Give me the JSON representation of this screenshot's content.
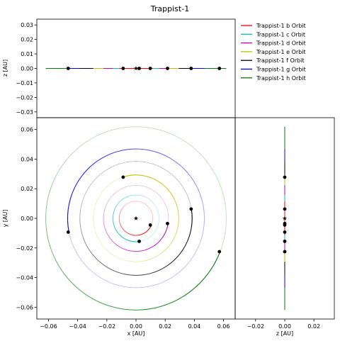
{
  "title": "Trappist-1",
  "legend": {
    "placement": "upper-right-panel",
    "entries": [
      {
        "label": "Trappist-1 b Orbit",
        "color": "#ff0000"
      },
      {
        "label": "Trappist-1 c Orbit",
        "color": "#00bfbf"
      },
      {
        "label": "Trappist-1 d Orbit",
        "color": "#bf00bf"
      },
      {
        "label": "Trappist-1 e Orbit",
        "color": "#bfbf00"
      },
      {
        "label": "Trappist-1 f Orbit",
        "color": "#000000"
      },
      {
        "label": "Trappist-1 g Orbit",
        "color": "#0000ff"
      },
      {
        "label": "Trappist-1 h Orbit",
        "color": "#008000"
      }
    ]
  },
  "chart_data": [
    {
      "type": "line",
      "panel": "xz",
      "xlabel": "",
      "ylabel": "z [AU]",
      "xlim": [
        -0.068,
        0.068
      ],
      "ylim": [
        -0.034,
        0.034
      ],
      "xticks": [],
      "yticks": [
        -0.03,
        -0.02,
        -0.01,
        0.0,
        0.01,
        0.02,
        0.03
      ],
      "ytick_labels": [
        "−0.03",
        "−0.02",
        "−0.01",
        "0.00",
        "0.01",
        "0.02",
        "0.03"
      ],
      "star": {
        "x": 0.0,
        "z": 0.0
      },
      "planets": [
        {
          "x": 0.0098,
          "z": 0.0
        },
        {
          "x": 0.0022,
          "z": 0.0
        },
        {
          "x": 0.0216,
          "z": 0.0
        },
        {
          "x": -0.0088,
          "z": 0.0
        },
        {
          "x": 0.0378,
          "z": 0.0
        },
        {
          "x": -0.0465,
          "z": 0.0
        },
        {
          "x": 0.0572,
          "z": 0.0
        }
      ]
    },
    {
      "type": "line",
      "panel": "xy",
      "xlabel": "x [AU]",
      "ylabel": "y [AU]",
      "xlim": [
        -0.068,
        0.068
      ],
      "ylim": [
        -0.068,
        0.068
      ],
      "xticks": [
        -0.06,
        -0.04,
        -0.02,
        0.0,
        0.02,
        0.04,
        0.06
      ],
      "xtick_labels": [
        "−0.06",
        "−0.04",
        "−0.02",
        "0.00",
        "0.02",
        "0.04",
        "0.06"
      ],
      "yticks": [
        -0.06,
        -0.04,
        -0.02,
        0.0,
        0.02,
        0.04,
        0.06
      ],
      "ytick_labels": [
        "−0.06",
        "−0.04",
        "−0.02",
        "0.00",
        "0.02",
        "0.04",
        "0.06"
      ],
      "star": {
        "x": 0.0,
        "y": 0.0
      },
      "series": [
        {
          "name": "Trappist-1 b Orbit",
          "radius": 0.0115,
          "planet": {
            "x": 0.0098,
            "y": -0.0045
          }
        },
        {
          "name": "Trappist-1 c Orbit",
          "radius": 0.0158,
          "planet": {
            "x": 0.0022,
            "y": -0.0155
          }
        },
        {
          "name": "Trappist-1 d Orbit",
          "radius": 0.0223,
          "planet": {
            "x": 0.0216,
            "y": -0.0035
          }
        },
        {
          "name": "Trappist-1 e Orbit",
          "radius": 0.0293,
          "planet": {
            "x": -0.0088,
            "y": 0.0278
          }
        },
        {
          "name": "Trappist-1 f Orbit",
          "radius": 0.0385,
          "planet": {
            "x": 0.0378,
            "y": 0.0063
          }
        },
        {
          "name": "Trappist-1 g Orbit",
          "radius": 0.0469,
          "planet": {
            "x": -0.0465,
            "y": -0.0093
          }
        },
        {
          "name": "Trappist-1 h Orbit",
          "radius": 0.0619,
          "planet": {
            "x": 0.0572,
            "y": -0.0225
          }
        }
      ]
    },
    {
      "type": "line",
      "panel": "zy",
      "xlabel": "z [AU]",
      "ylabel": "",
      "xlim": [
        -0.034,
        0.034
      ],
      "ylim": [
        -0.068,
        0.068
      ],
      "xticks": [
        -0.02,
        0.0,
        0.02
      ],
      "xtick_labels": [
        "−0.02",
        "0.00",
        "0.02"
      ],
      "yticks": [],
      "star": {
        "z": 0.0,
        "y": 0.0
      },
      "planets": [
        {
          "z": 0.0,
          "y": -0.0045
        },
        {
          "z": 0.0,
          "y": -0.0155
        },
        {
          "z": 0.0,
          "y": -0.0035
        },
        {
          "z": 0.0,
          "y": 0.0278
        },
        {
          "z": 0.0,
          "y": 0.0063
        },
        {
          "z": 0.0,
          "y": -0.0093
        },
        {
          "z": 0.0,
          "y": -0.0225
        }
      ]
    }
  ]
}
